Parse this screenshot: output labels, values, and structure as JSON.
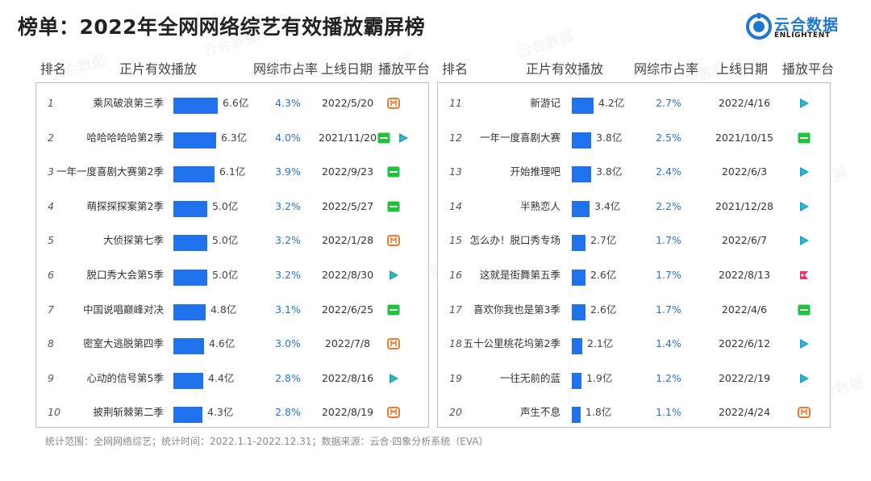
{
  "title": "榜单：2022年全网网络综艺有效播放霸屏榜",
  "logo": {
    "cn": "云合数据",
    "en": "ENLIGHTENT"
  },
  "headers": [
    "排名",
    "正片有效播放",
    "网综市占率",
    "上线日期",
    "播放平台"
  ],
  "footnote": "统计范围：全网网络综艺；统计时间：2022.1.1-2022.12.31；数据来源：云合·四象分析系统（EVA）",
  "watermark": "云合数据",
  "platform_icons": {
    "mango": {
      "name": "mango-tv-icon",
      "color": "#f07a2c"
    },
    "iqiyi": {
      "name": "iqiyi-icon",
      "color": "#1ec23b"
    },
    "tencent": {
      "name": "tencent-video-icon",
      "color": "#1a9cf0"
    },
    "bilibili": {
      "name": "bilibili-icon",
      "color": "#e8356d"
    }
  },
  "accent_color": "#1f72ec",
  "chart_data": {
    "type": "table",
    "value_unit": "亿",
    "value_max": 6.6,
    "rows": [
      {
        "rank": "1",
        "name": "乘风破浪第三季",
        "value": 6.6,
        "value_label": "6.6亿",
        "share": "4.3%",
        "date": "2022/5/20",
        "platforms": [
          "mango"
        ]
      },
      {
        "rank": "2",
        "name": "哈哈哈哈哈第2季",
        "value": 6.3,
        "value_label": "6.3亿",
        "share": "4.0%",
        "date": "2021/11/20",
        "platforms": [
          "iqiyi",
          "tencent"
        ]
      },
      {
        "rank": "3",
        "name": "一年一度喜剧大赛第2季",
        "value": 6.1,
        "value_label": "6.1亿",
        "share": "3.9%",
        "date": "2022/9/23",
        "platforms": [
          "iqiyi"
        ]
      },
      {
        "rank": "4",
        "name": "萌探探探案第2季",
        "value": 5.0,
        "value_label": "5.0亿",
        "share": "3.2%",
        "date": "2022/5/27",
        "platforms": [
          "iqiyi"
        ]
      },
      {
        "rank": "5",
        "name": "大侦探第七季",
        "value": 5.0,
        "value_label": "5.0亿",
        "share": "3.2%",
        "date": "2022/1/28",
        "platforms": [
          "mango"
        ]
      },
      {
        "rank": "6",
        "name": "脱口秀大会第5季",
        "value": 5.0,
        "value_label": "5.0亿",
        "share": "3.2%",
        "date": "2022/8/30",
        "platforms": [
          "tencent"
        ]
      },
      {
        "rank": "7",
        "name": "中国说唱巅峰对决",
        "value": 4.8,
        "value_label": "4.8亿",
        "share": "3.1%",
        "date": "2022/6/25",
        "platforms": [
          "iqiyi"
        ]
      },
      {
        "rank": "8",
        "name": "密室大逃脱第四季",
        "value": 4.6,
        "value_label": "4.6亿",
        "share": "3.0%",
        "date": "2022/7/8",
        "platforms": [
          "mango"
        ]
      },
      {
        "rank": "9",
        "name": "心动的信号第5季",
        "value": 4.4,
        "value_label": "4.4亿",
        "share": "2.8%",
        "date": "2022/8/16",
        "platforms": [
          "tencent"
        ]
      },
      {
        "rank": "10",
        "name": "披荆斩棘第二季",
        "value": 4.3,
        "value_label": "4.3亿",
        "share": "2.8%",
        "date": "2022/8/19",
        "platforms": [
          "mango"
        ]
      },
      {
        "rank": "11",
        "name": "新游记",
        "value": 4.2,
        "value_label": "4.2亿",
        "share": "2.7%",
        "date": "2022/4/16",
        "platforms": [
          "tencent"
        ]
      },
      {
        "rank": "12",
        "name": "一年一度喜剧大赛",
        "value": 3.8,
        "value_label": "3.8亿",
        "share": "2.5%",
        "date": "2021/10/15",
        "platforms": [
          "iqiyi"
        ]
      },
      {
        "rank": "13",
        "name": "开始推理吧",
        "value": 3.8,
        "value_label": "3.8亿",
        "share": "2.4%",
        "date": "2022/6/3",
        "platforms": [
          "tencent"
        ]
      },
      {
        "rank": "14",
        "name": "半熟恋人",
        "value": 3.4,
        "value_label": "3.4亿",
        "share": "2.2%",
        "date": "2021/12/28",
        "platforms": [
          "tencent"
        ]
      },
      {
        "rank": "15",
        "name": "怎么办！脱口秀专场",
        "value": 2.7,
        "value_label": "2.7亿",
        "share": "1.7%",
        "date": "2022/6/7",
        "platforms": [
          "tencent"
        ]
      },
      {
        "rank": "16",
        "name": "这就是街舞第五季",
        "value": 2.6,
        "value_label": "2.6亿",
        "share": "1.7%",
        "date": "2022/8/13",
        "platforms": [
          "bilibili"
        ]
      },
      {
        "rank": "17",
        "name": "喜欢你我也是第3季",
        "value": 2.6,
        "value_label": "2.6亿",
        "share": "1.7%",
        "date": "2022/4/6",
        "platforms": [
          "iqiyi"
        ]
      },
      {
        "rank": "18",
        "name": "五十公里桃花坞第2季",
        "value": 2.1,
        "value_label": "2.1亿",
        "share": "1.4%",
        "date": "2022/6/12",
        "platforms": [
          "tencent"
        ]
      },
      {
        "rank": "19",
        "name": "一往无前的蓝",
        "value": 1.9,
        "value_label": "1.9亿",
        "share": "1.2%",
        "date": "2022/2/19",
        "platforms": [
          "tencent"
        ]
      },
      {
        "rank": "20",
        "name": "声生不息",
        "value": 1.8,
        "value_label": "1.8亿",
        "share": "1.1%",
        "date": "2022/4/24",
        "platforms": [
          "mango"
        ]
      }
    ]
  }
}
